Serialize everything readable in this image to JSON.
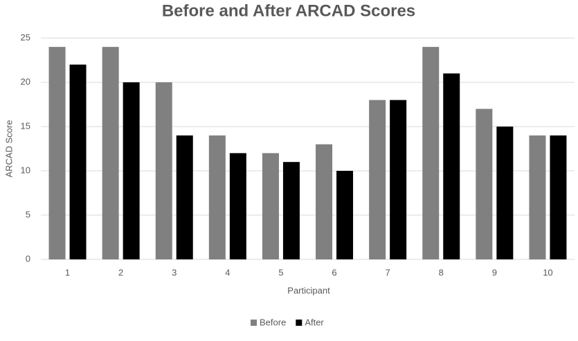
{
  "chart_data": {
    "type": "bar",
    "title": "Before and After ARCAD Scores",
    "x_label": "Participant",
    "y_label": "ARCAD Score",
    "categories": [
      "1",
      "2",
      "3",
      "4",
      "5",
      "6",
      "7",
      "8",
      "9",
      "10"
    ],
    "series": [
      {
        "name": "Before",
        "color": "#808080",
        "values": [
          24,
          24,
          20,
          14,
          12,
          13,
          18,
          24,
          17,
          14
        ]
      },
      {
        "name": "After",
        "color": "#000000",
        "values": [
          22,
          20,
          14,
          12,
          11,
          10,
          18,
          21,
          15,
          14
        ]
      }
    ],
    "ylim": [
      0,
      25
    ],
    "yticks": [
      0,
      5,
      10,
      15,
      20,
      25
    ],
    "grid": true,
    "legend": "bottom"
  }
}
